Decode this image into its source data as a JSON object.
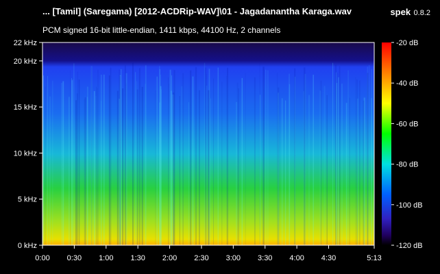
{
  "header": {
    "file_title": "... [Tamil] (Saregama) [2012-ACDRip-WAV]\\01 - Jagadanantha Karaga.wav",
    "app_name": "spek",
    "app_version": "0.8.2",
    "info": "PCM signed 16-bit little-endian, 1411 kbps, 44100 Hz, 2 channels"
  },
  "chart_data": {
    "type": "heatmap",
    "freq_axis": {
      "ticks": [
        "22 kHz",
        "20 kHz",
        "15 kHz",
        "10 kHz",
        "5 kHz",
        "0 kHz"
      ],
      "values": [
        22,
        20,
        15,
        10,
        5,
        0
      ],
      "range": [
        0,
        22
      ]
    },
    "time_axis": {
      "ticks": [
        "0:00",
        "0:30",
        "1:00",
        "1:30",
        "2:00",
        "2:30",
        "3:00",
        "3:30",
        "4:00",
        "4:30",
        "5:13"
      ],
      "values": [
        0,
        30,
        60,
        90,
        120,
        150,
        180,
        210,
        240,
        270,
        313
      ],
      "range": [
        0,
        313
      ]
    },
    "db_scale": {
      "ticks": [
        "-20 dB",
        "-40 dB",
        "-60 dB",
        "-80 dB",
        "-100 dB",
        "-120 dB"
      ],
      "values": [
        -20,
        -40,
        -60,
        -80,
        -100,
        -120
      ],
      "range": [
        -120,
        -20
      ]
    },
    "colormap": [
      "#ff0000",
      "#ff8000",
      "#ffff00",
      "#00ff00",
      "#00e0e0",
      "#0060ff",
      "#2020c0",
      "#200060",
      "#000000"
    ]
  }
}
